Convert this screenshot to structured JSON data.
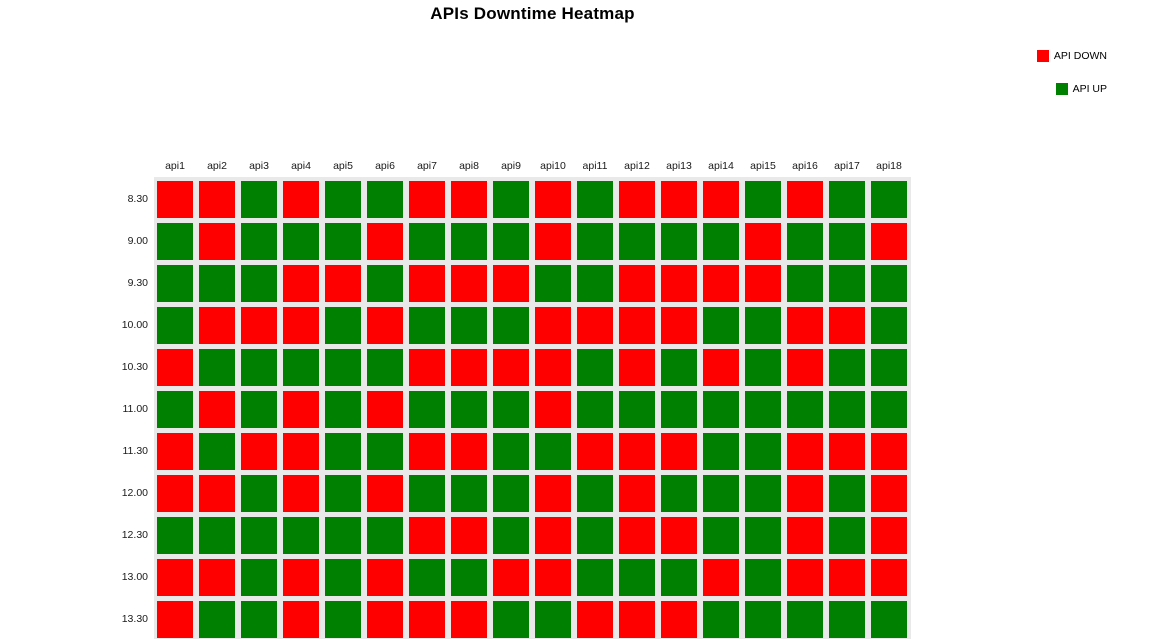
{
  "title": "APIs Downtime Heatmap",
  "legend": {
    "items": [
      {
        "label": "API DOWN",
        "color": "#ff0000"
      },
      {
        "label": "API UP",
        "color": "#008000"
      }
    ]
  },
  "chart_data": {
    "type": "heatmap",
    "title": "APIs Downtime Heatmap",
    "x": [
      "api1",
      "api2",
      "api3",
      "api4",
      "api5",
      "api6",
      "api7",
      "api8",
      "api9",
      "api10",
      "api11",
      "api12",
      "api13",
      "api14",
      "api15",
      "api16",
      "api17",
      "api18"
    ],
    "y": [
      "8.30",
      "9.00",
      "9.30",
      "10.00",
      "10.30",
      "11.00",
      "11.30",
      "12.00",
      "12.30",
      "13.00",
      "13.30"
    ],
    "value_meaning": {
      "1": "API DOWN",
      "0": "API UP"
    },
    "colors": {
      "down": "#ff0000",
      "up": "#008000"
    },
    "plot_background": "#e9e9e9",
    "values": [
      [
        1,
        1,
        0,
        1,
        0,
        0,
        1,
        1,
        0,
        1,
        0,
        1,
        1,
        1,
        0,
        1,
        0,
        0
      ],
      [
        0,
        1,
        0,
        0,
        0,
        1,
        0,
        0,
        0,
        1,
        0,
        0,
        0,
        0,
        1,
        0,
        0,
        1
      ],
      [
        0,
        0,
        0,
        1,
        1,
        0,
        1,
        1,
        1,
        0,
        0,
        1,
        1,
        1,
        1,
        0,
        0,
        0
      ],
      [
        0,
        1,
        1,
        1,
        0,
        1,
        0,
        0,
        0,
        1,
        1,
        1,
        1,
        0,
        0,
        1,
        1,
        0
      ],
      [
        1,
        0,
        0,
        0,
        0,
        0,
        1,
        1,
        1,
        1,
        0,
        1,
        0,
        1,
        0,
        1,
        0,
        0
      ],
      [
        0,
        1,
        0,
        1,
        0,
        1,
        0,
        0,
        0,
        1,
        0,
        0,
        0,
        0,
        0,
        0,
        0,
        0
      ],
      [
        1,
        0,
        1,
        1,
        0,
        0,
        1,
        1,
        0,
        0,
        1,
        1,
        1,
        0,
        0,
        1,
        1,
        1
      ],
      [
        1,
        1,
        0,
        1,
        0,
        1,
        0,
        0,
        0,
        1,
        0,
        1,
        0,
        0,
        0,
        1,
        0,
        1
      ],
      [
        0,
        0,
        0,
        0,
        0,
        0,
        1,
        1,
        0,
        1,
        0,
        1,
        1,
        0,
        0,
        1,
        0,
        1
      ],
      [
        1,
        1,
        0,
        1,
        0,
        1,
        0,
        0,
        1,
        1,
        0,
        0,
        0,
        1,
        0,
        1,
        1,
        1
      ],
      [
        1,
        0,
        0,
        1,
        0,
        1,
        1,
        1,
        0,
        0,
        1,
        1,
        1,
        0,
        0,
        0,
        0,
        0
      ]
    ]
  }
}
